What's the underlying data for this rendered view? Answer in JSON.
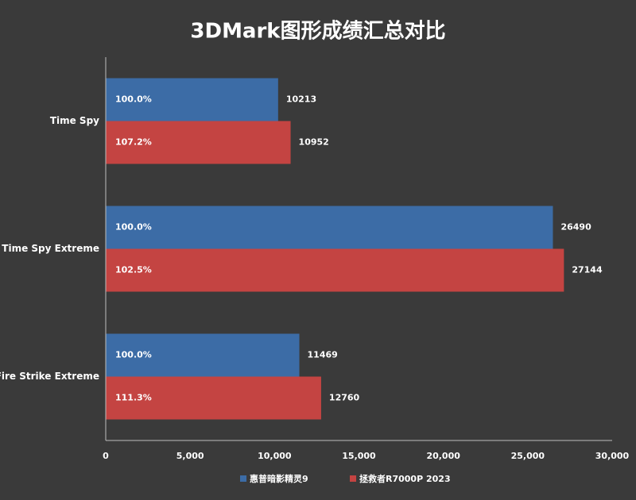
{
  "chart_data": {
    "type": "hbar",
    "title": "3DMark图形成绩汇总对比",
    "categories": [
      "Time Spy",
      "Time Spy Extreme",
      "Fire Strike Extreme"
    ],
    "series": [
      {
        "name": "惠普暗影精灵9",
        "color": "#3c6ca6",
        "values": [
          10213,
          26490,
          11469
        ],
        "ratio_labels": [
          "100.0%",
          "100.0%",
          "100.0%"
        ]
      },
      {
        "name": "拯救者R7000P 2023",
        "color": "#c44442",
        "values": [
          10952,
          27144,
          12760
        ],
        "ratio_labels": [
          "107.2%",
          "102.5%",
          "111.3%"
        ]
      }
    ],
    "xlim": [
      0,
      30000
    ],
    "xticks": [
      0,
      {
        "value": 5000,
        "label": "5,000"
      },
      {
        "value": 10000,
        "label": "10,000"
      },
      {
        "value": 15000,
        "label": "15,000"
      },
      {
        "value": 20000,
        "label": "20,000"
      },
      {
        "value": 25000,
        "label": "25,000"
      },
      {
        "value": 30000,
        "label": "30,000"
      }
    ]
  }
}
